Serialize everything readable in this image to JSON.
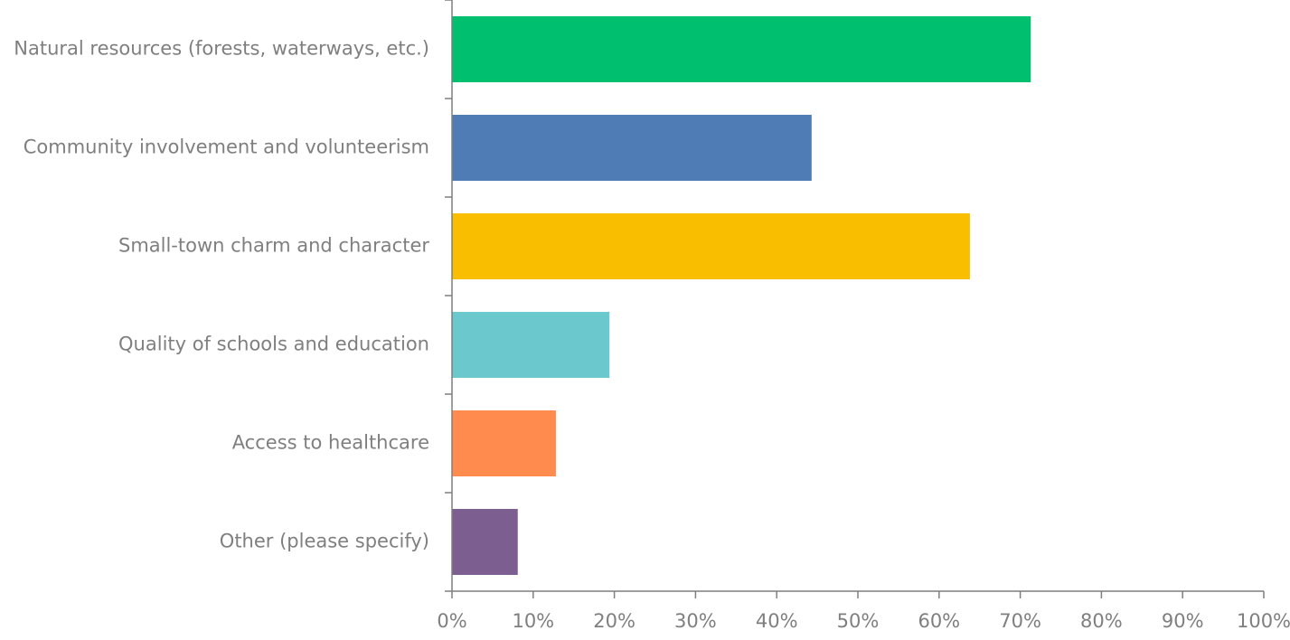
{
  "chart_data": {
    "type": "bar",
    "orientation": "horizontal",
    "categories": [
      "Natural resources (forests, waterways, etc.)",
      "Community involvement and volunteerism",
      "Small-town charm and character",
      "Quality of schools and education",
      "Access to healthcare",
      "Other (please specify)"
    ],
    "values": [
      71.3,
      44.3,
      63.8,
      19.4,
      12.8,
      8.1
    ],
    "unit": "%",
    "colors": [
      "#00bf6f",
      "#507cb6",
      "#f9be00",
      "#6bc8cd",
      "#ff8b4f",
      "#7d5e90"
    ],
    "xlim": [
      0,
      100
    ],
    "x_ticks": [
      0,
      10,
      20,
      30,
      40,
      50,
      60,
      70,
      80,
      90,
      100
    ],
    "x_tick_labels": [
      "0%",
      "10%",
      "20%",
      "30%",
      "40%",
      "50%",
      "60%",
      "70%",
      "80%",
      "90%",
      "100%"
    ],
    "title": "",
    "xlabel": "",
    "ylabel": "",
    "grid": false,
    "legend": "none",
    "axis_color": "#7f7f7f",
    "label_color": "#7f7f7f"
  }
}
